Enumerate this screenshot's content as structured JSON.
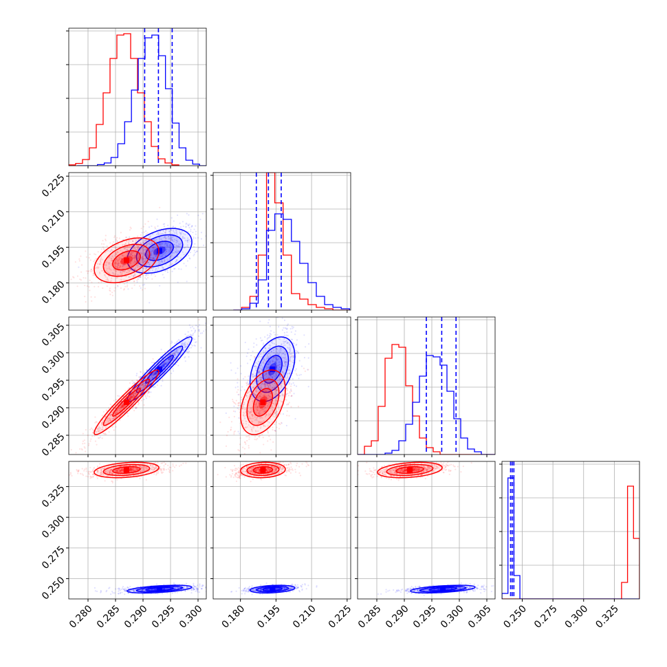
{
  "chart_data": {
    "type": "corner",
    "description_of_layout": "lower-triangle",
    "colors": {
      "series_a": "#ff0000",
      "series_b": "#0000ff",
      "grid": "#b0b0b0"
    },
    "params": [
      {
        "range": [
          0.2765,
          0.3015
        ],
        "ticks": [
          0.28,
          0.285,
          0.29,
          0.295,
          0.3
        ],
        "tick_labels": [
          "0.280",
          "0.285",
          "0.290",
          "0.295",
          "0.300"
        ]
      },
      {
        "range": [
          0.1685,
          0.2265
        ],
        "ticks": [
          0.18,
          0.195,
          0.21,
          0.225
        ],
        "tick_labels": [
          "0.180",
          "0.195",
          "0.210",
          "0.225"
        ]
      },
      {
        "range": [
          0.2815,
          0.3065
        ],
        "ticks": [
          0.285,
          0.29,
          0.295,
          0.3,
          0.305
        ],
        "tick_labels": [
          "0.285",
          "0.290",
          "0.295",
          "0.300",
          "0.305"
        ]
      },
      {
        "range": [
          0.2335,
          0.3455
        ],
        "ticks": [
          0.25,
          0.275,
          0.3,
          0.325
        ],
        "tick_labels": [
          "0.250",
          "0.275",
          "0.300",
          "0.325"
        ]
      }
    ],
    "series": [
      {
        "key": "series_a",
        "mean": [
          0.287,
          0.1895,
          0.291,
          0.3385
        ],
        "sd": [
          0.0028,
          0.0045,
          0.0028,
          0.003
        ],
        "corr": [
          [
            1,
            0.4,
            0.95,
            0.3
          ],
          [
            0.4,
            1,
            0.4,
            0.1
          ],
          [
            0.95,
            0.4,
            1,
            0.3
          ],
          [
            0.3,
            0.1,
            0.3,
            1
          ]
        ]
      },
      {
        "key": "series_b",
        "mean": [
          0.293,
          0.1935,
          0.297,
          0.2415
        ],
        "sd": [
          0.0028,
          0.0045,
          0.0028,
          0.0015
        ],
        "corr": [
          [
            1,
            0.4,
            0.95,
            0.5
          ],
          [
            0.4,
            1,
            0.4,
            0.3
          ],
          [
            0.95,
            0.4,
            1,
            0.5
          ],
          [
            0.5,
            0.3,
            0.5,
            1
          ]
        ]
      }
    ],
    "quantile_lines": [
      [
        0.2903,
        0.2928,
        0.2953
      ],
      [
        0.1867,
        0.1918,
        0.1972
      ],
      [
        0.294,
        0.2968,
        0.2994
      ],
      [
        0.2405,
        0.2418,
        0.2432
      ]
    ],
    "histograms": [
      {
        "series_a": [
          0.006,
          0.017,
          0.045,
          0.13,
          0.3,
          0.53,
          0.78,
          0.95,
          0.96,
          0.78,
          0.53,
          0.32,
          0.14,
          0.05,
          0.02,
          0.006
        ],
        "series_b": [
          0.0,
          0.0,
          0.0,
          0.008,
          0.02,
          0.06,
          0.16,
          0.32,
          0.55,
          0.78,
          0.93,
          0.95,
          0.8,
          0.56,
          0.31,
          0.13,
          0.04,
          0.012,
          0.0
        ]
      },
      {
        "series_a": [
          0.0,
          0.02,
          0.1,
          0.4,
          1.0,
          0.78,
          0.4,
          0.12,
          0.08,
          0.04,
          0.02,
          0.01,
          0.0,
          0.0
        ],
        "series_b": [
          0.0,
          0.01,
          0.05,
          0.22,
          0.58,
          0.7,
          0.66,
          0.5,
          0.34,
          0.2,
          0.1,
          0.04,
          0.02,
          0.01
        ]
      },
      {
        "series_a": [
          0.0,
          0.06,
          0.1,
          0.35,
          0.7,
          0.8,
          0.78,
          0.5,
          0.28,
          0.12,
          0.05,
          0.02,
          0.0,
          0.0,
          0.0,
          0.0,
          0.0,
          0.0,
          0.0,
          0.0
        ],
        "series_b": [
          0.0,
          0.0,
          0.0,
          0.0,
          0.01,
          0.03,
          0.1,
          0.22,
          0.38,
          0.57,
          0.72,
          0.71,
          0.65,
          0.46,
          0.26,
          0.12,
          0.04,
          0.02,
          0.0,
          0.0
        ]
      },
      {
        "series_a": [
          0.0,
          0.0,
          0.0,
          0.0,
          0.0,
          0.0,
          0.0,
          0.0,
          0.0,
          0.0,
          0.0,
          0.0,
          0.0,
          0.0,
          0.0,
          0.0,
          0.0,
          0.0,
          0.0,
          0.0,
          0.12,
          0.82,
          0.44
        ],
        "series_b": [
          0.04,
          0.88,
          0.17,
          0.0,
          0.0,
          0.0,
          0.0,
          0.0,
          0.0,
          0.0,
          0.0,
          0.0,
          0.0,
          0.0,
          0.0,
          0.0,
          0.0,
          0.0,
          0.0,
          0.0,
          0.0,
          0.0,
          0.0
        ]
      }
    ],
    "grid": true,
    "legend": "none"
  }
}
